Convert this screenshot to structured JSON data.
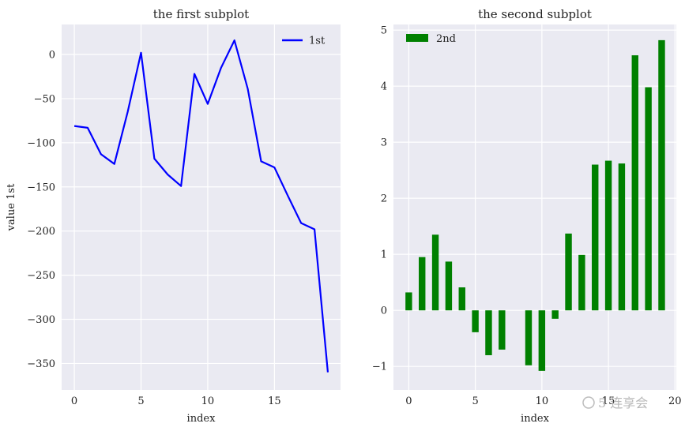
{
  "chart_data": [
    {
      "type": "line",
      "title": "the first subplot",
      "xlabel": "index",
      "ylabel": "value 1st",
      "xlim": [
        -0.95,
        19.95
      ],
      "ylim": [
        -380,
        34
      ],
      "xticks": [
        0,
        5,
        10,
        15
      ],
      "yticks": [
        0,
        -50,
        -100,
        -150,
        -200,
        -250,
        -300,
        -350
      ],
      "xtick_labels": [
        "0",
        "5",
        "10",
        "15"
      ],
      "ytick_labels": [
        "0",
        "−50",
        "−100",
        "−150",
        "−200",
        "−250",
        "−300",
        "−350"
      ],
      "grid": true,
      "legend_position": "top-right",
      "series": [
        {
          "name": "1st",
          "color": "#0000ff",
          "x": [
            0,
            1,
            2,
            3,
            4,
            5,
            6,
            7,
            8,
            9,
            10,
            11,
            12,
            13,
            14,
            15,
            16,
            17,
            18,
            19
          ],
          "y": [
            -81,
            -83,
            -113,
            -124,
            -65,
            2,
            -118,
            -136,
            -149,
            -22,
            -56,
            -15,
            16,
            -39,
            -121,
            -128,
            -160,
            -191,
            -198,
            -360
          ]
        }
      ]
    },
    {
      "type": "bar",
      "title": "the second subplot",
      "xlabel": "index",
      "ylabel": "",
      "xlim": [
        -1.15,
        20.1
      ],
      "ylim": [
        -1.42,
        5.1
      ],
      "xticks": [
        0,
        5,
        10,
        15,
        20
      ],
      "yticks": [
        -1,
        0,
        1,
        2,
        3,
        4,
        5
      ],
      "xtick_labels": [
        "0",
        "5",
        "10",
        "15",
        "20"
      ],
      "ytick_labels": [
        "−1",
        "0",
        "1",
        "2",
        "3",
        "4",
        "5"
      ],
      "grid": true,
      "legend_position": "top-left",
      "series": [
        {
          "name": "2nd",
          "color": "#008000",
          "x": [
            0,
            1,
            2,
            3,
            4,
            5,
            6,
            7,
            8,
            9,
            10,
            11,
            12,
            13,
            14,
            15,
            16,
            17,
            18,
            19
          ],
          "values": [
            0.32,
            0.95,
            1.35,
            0.87,
            0.41,
            -0.39,
            -0.8,
            -0.7,
            0,
            -0.98,
            -1.08,
            -0.15,
            1.37,
            0.99,
            2.6,
            2.67,
            2.62,
            4.55,
            3.98,
            4.82
          ]
        }
      ]
    }
  ],
  "watermark": "5 连享会",
  "colors": {
    "panel_background": "#eaeaf2",
    "grid": "#ffffff"
  }
}
